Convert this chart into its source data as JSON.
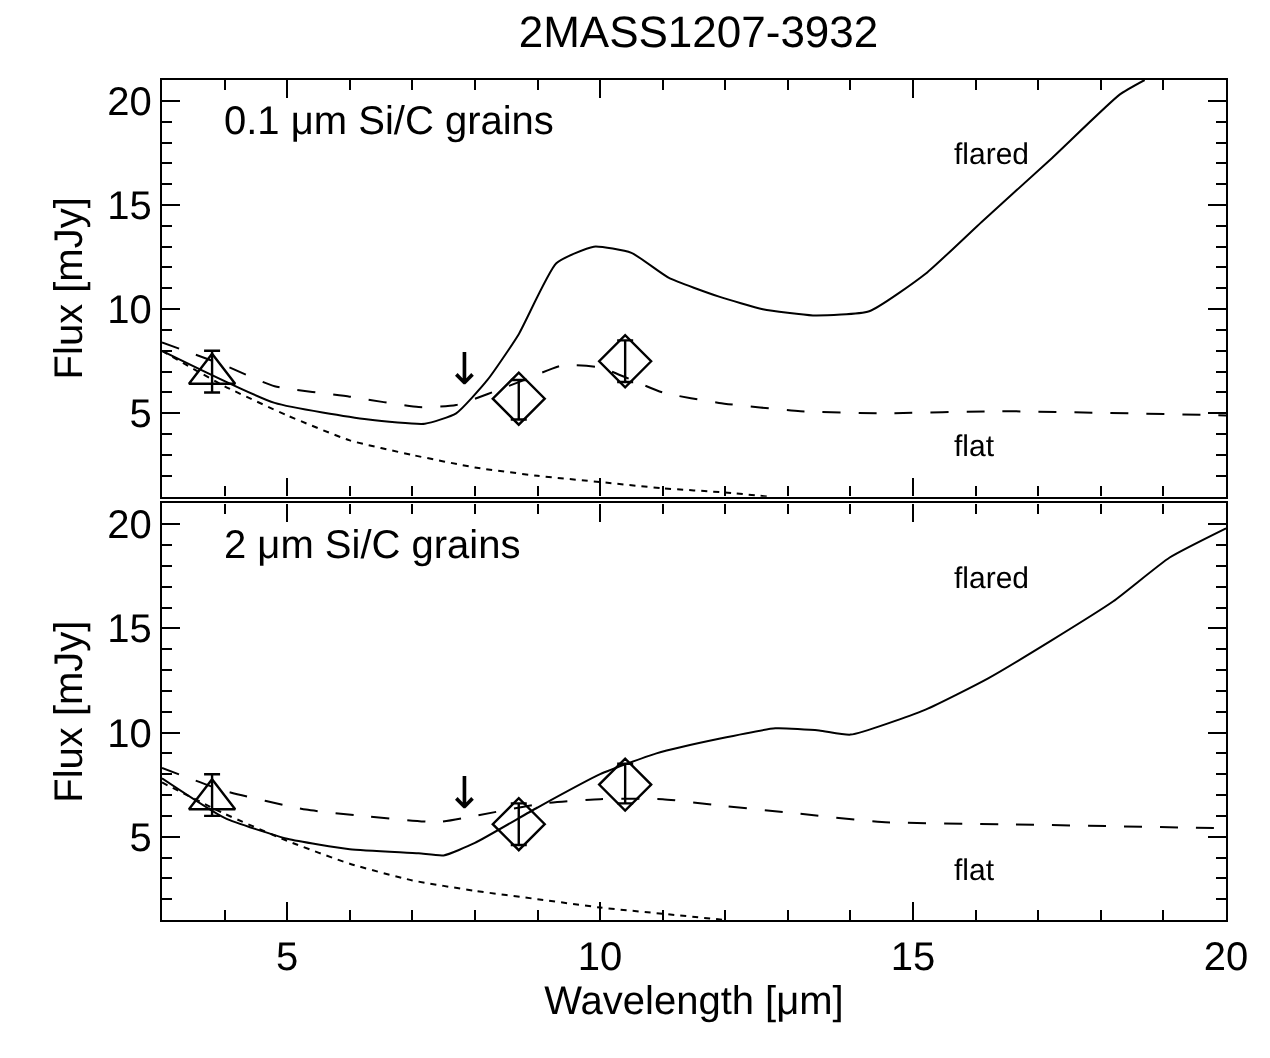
{
  "chart_data": [
    {
      "type": "line",
      "title": "2MASS1207-3932",
      "ylabel": "Flux [mJy]",
      "xlim": [
        3,
        20
      ],
      "xticks": [
        5,
        10,
        15,
        20
      ],
      "ylim": [
        1,
        21
      ],
      "yticks": [
        5,
        10,
        15,
        20
      ],
      "tick_labels": "y",
      "annotations": [
        "0.1 μm Si/C grains",
        "flared",
        "flat",
        "↓"
      ],
      "series": [
        {
          "type": "line",
          "color": "#000000",
          "line_style": "solid",
          "x": [
            3,
            4.8,
            6.3,
            7.2,
            7.7,
            8.2,
            8.7,
            9.3,
            9.9,
            10.5,
            11.1,
            11.9,
            12.6,
            13.4,
            14.3,
            15.2,
            16.1,
            17.2,
            18.3,
            18.7
          ],
          "values": [
            8.0,
            5.5,
            4.7,
            4.5,
            5.0,
            6.6,
            8.8,
            12.2,
            13.0,
            12.7,
            11.5,
            10.6,
            10.0,
            9.7,
            9.9,
            11.7,
            14.2,
            17.2,
            20.3,
            21
          ]
        },
        {
          "type": "line",
          "color": "#000000",
          "line_style": "dashed",
          "x": [
            3,
            4,
            4.8,
            6,
            7.1,
            7.7,
            8.7,
            9.4,
            10,
            11,
            11.9,
            13.2,
            14.5,
            16.4,
            20
          ],
          "values": [
            8.4,
            7.3,
            6.3,
            5.8,
            5.3,
            5.4,
            6.5,
            7.3,
            7.2,
            6.0,
            5.5,
            5.1,
            5.0,
            5.1,
            4.9
          ]
        },
        {
          "type": "line",
          "color": "#000000",
          "line_style": "dotted",
          "x": [
            3,
            4,
            5,
            6,
            7,
            8,
            9,
            10,
            11,
            12,
            12.7
          ],
          "values": [
            8.0,
            6.3,
            4.9,
            3.7,
            3.0,
            2.4,
            2.0,
            1.7,
            1.4,
            1.2,
            1.0
          ]
        },
        {
          "type": "scatter",
          "color": "#000000",
          "marker": "triangle",
          "x": [
            3.8
          ],
          "values": [
            6.9
          ],
          "errors": [
            [
              6.0,
              8.0
            ]
          ]
        },
        {
          "type": "scatter",
          "color": "#000000",
          "marker": "diamond",
          "x": [
            8.7,
            10.4
          ],
          "values": [
            5.7,
            7.5
          ],
          "errors": [
            [
              4.7,
              6.6
            ],
            [
              6.5,
              8.5
            ]
          ]
        }
      ]
    },
    {
      "type": "line",
      "xlabel": "Wavelength [μm]",
      "ylabel": "Flux [mJy]",
      "xlim": [
        3,
        20
      ],
      "xticks": [
        5,
        10,
        15,
        20
      ],
      "ylim": [
        1,
        21
      ],
      "yticks": [
        5,
        10,
        15,
        20
      ],
      "annotations": [
        "2 μm Si/C grains",
        "flared",
        "flat",
        "↓"
      ],
      "series": [
        {
          "type": "line",
          "color": "#000000",
          "line_style": "solid",
          "x": [
            3,
            4,
            5,
            6,
            7.1,
            7.5,
            8,
            9,
            10,
            10.9,
            11.9,
            12.8,
            13.5,
            14,
            15.2,
            16.2,
            17.2,
            18.2,
            19.1,
            20
          ],
          "values": [
            7.8,
            5.9,
            4.9,
            4.4,
            4.2,
            4.1,
            4.7,
            6.4,
            8.0,
            9.0,
            9.7,
            10.2,
            10.1,
            9.9,
            11.1,
            12.6,
            14.4,
            16.3,
            18.4,
            19.8
          ]
        },
        {
          "type": "line",
          "color": "#000000",
          "line_style": "dashed",
          "x": [
            3,
            4,
            5.3,
            6.2,
            7.4,
            8,
            9.1,
            10,
            11,
            11.9,
            13.2,
            14.5,
            16.4,
            20
          ],
          "values": [
            8.3,
            7.2,
            6.3,
            6.0,
            5.7,
            6.0,
            6.6,
            6.8,
            6.8,
            6.5,
            6.1,
            5.7,
            5.6,
            5.4
          ]
        },
        {
          "type": "line",
          "color": "#000000",
          "line_style": "dotted",
          "x": [
            3,
            4,
            5,
            6,
            7,
            8,
            9,
            10,
            11,
            12
          ],
          "values": [
            7.6,
            6.1,
            4.8,
            3.7,
            2.9,
            2.4,
            2.0,
            1.6,
            1.3,
            1.0
          ]
        },
        {
          "type": "scatter",
          "color": "#000000",
          "marker": "triangle",
          "x": [
            3.8
          ],
          "values": [
            6.8
          ],
          "errors": [
            [
              6.0,
              8.0
            ]
          ]
        },
        {
          "type": "scatter",
          "color": "#000000",
          "marker": "diamond",
          "x": [
            8.7,
            10.4
          ],
          "values": [
            5.6,
            7.5
          ],
          "errors": [
            [
              4.6,
              6.6
            ],
            [
              6.6,
              8.5
            ]
          ]
        }
      ]
    }
  ]
}
